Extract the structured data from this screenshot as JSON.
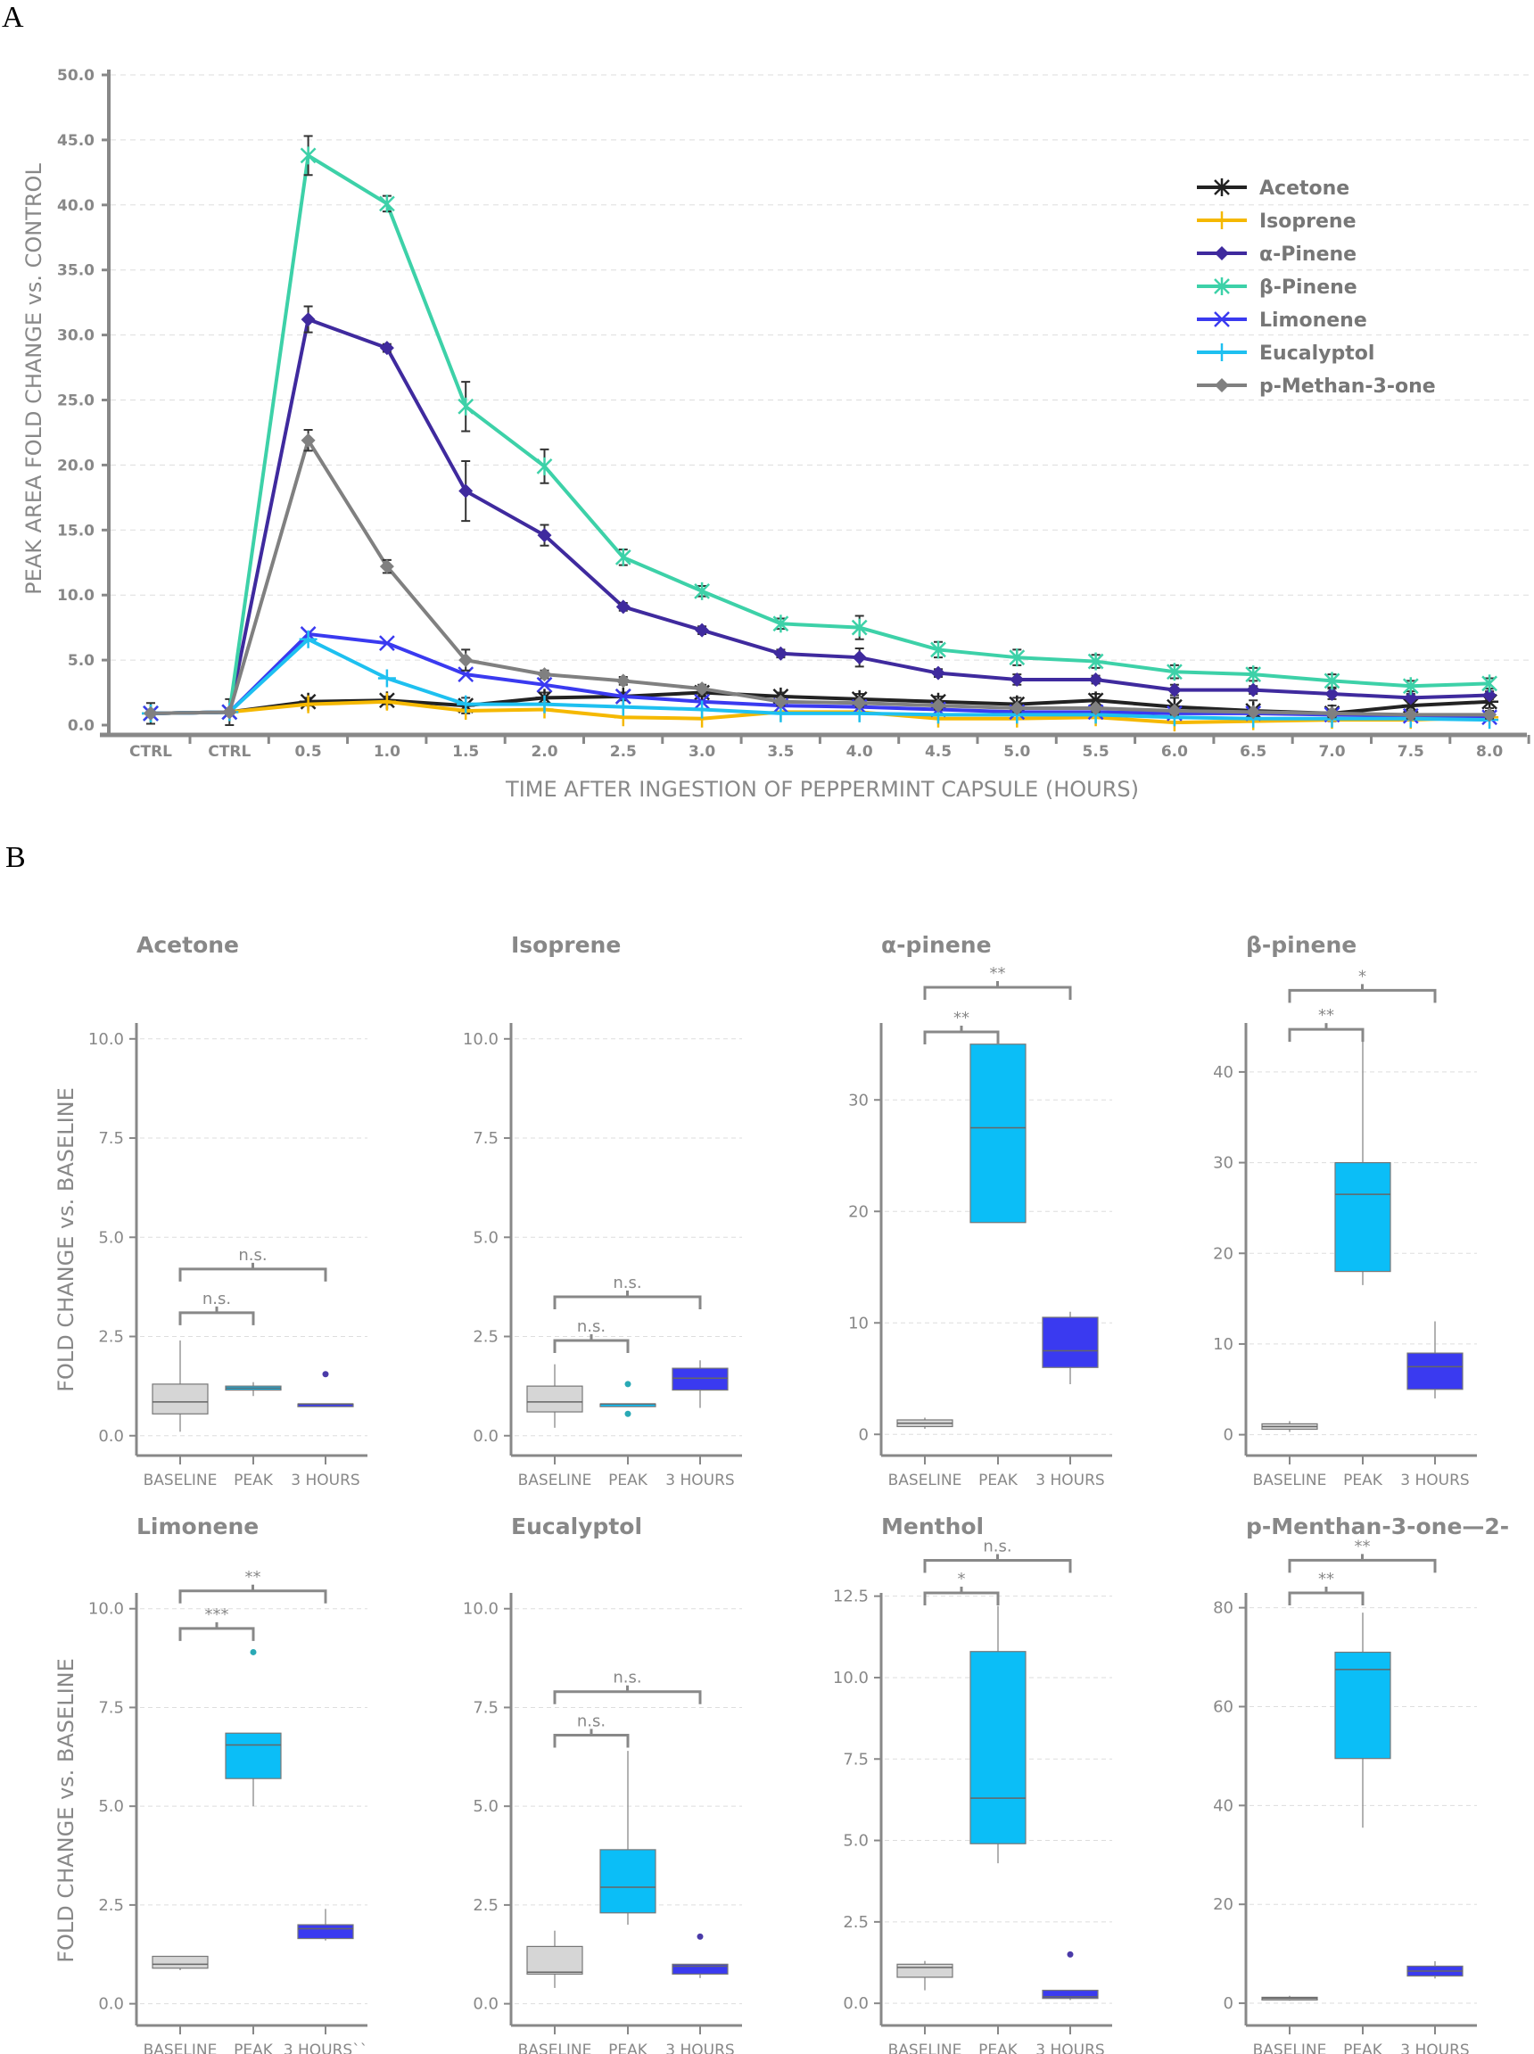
{
  "panel_labels": {
    "a": "A",
    "b": "B"
  },
  "chart_data": [
    {
      "type": "line",
      "panel": "A",
      "xlabel": "TIME AFTER INGESTION OF PEPPERMINT CAPSULE (HOURS)",
      "ylabel": "PEAK AREA FOLD CHANGE vs. CONTROL",
      "categories": [
        "CTRL",
        "CTRL",
        "0.5",
        "1.0",
        "1.5",
        "2.0",
        "2.5",
        "3.0",
        "3.5",
        "4.0",
        "4.5",
        "5.0",
        "5.5",
        "6.0",
        "6.5",
        "7.0",
        "7.5",
        "8.0"
      ],
      "ylim": [
        0,
        50
      ],
      "yticks": [
        "0.0",
        "5.0",
        "10.0",
        "15.0",
        "20.0",
        "25.0",
        "30.0",
        "35.0",
        "40.0",
        "45.0",
        "50.0"
      ],
      "grid": true,
      "legend_position": "top-right",
      "series": [
        {
          "name": "Acetone",
          "color": "#222222",
          "marker": "asterisk",
          "values": [
            0.9,
            1.0,
            1.8,
            1.9,
            1.5,
            2.1,
            2.2,
            2.5,
            2.2,
            2.0,
            1.8,
            1.6,
            1.9,
            1.4,
            1.1,
            0.9,
            1.5,
            1.8
          ],
          "error": [
            0.8,
            1.0,
            0.3,
            0.3,
            0.6,
            0.4,
            0.3,
            0.3,
            0.3,
            0.4,
            0.4,
            0.5,
            0.5,
            0.7,
            0.8,
            0.6,
            0.5,
            0.5
          ]
        },
        {
          "name": "Isoprene",
          "color": "#f5b800",
          "marker": "plus",
          "values": [
            0.9,
            1.0,
            1.6,
            1.8,
            1.1,
            1.2,
            0.6,
            0.5,
            1.0,
            1.0,
            0.5,
            0.5,
            0.6,
            0.2,
            0.3,
            0.4,
            0.4,
            0.6
          ]
        },
        {
          "name": "α-Pinene",
          "color": "#3f2a9e",
          "marker": "diamond",
          "values": [
            0.9,
            1.0,
            31.2,
            29.0,
            18.0,
            14.6,
            9.1,
            7.3,
            5.5,
            5.2,
            4.0,
            3.5,
            3.5,
            2.7,
            2.7,
            2.4,
            2.1,
            2.3
          ],
          "error": [
            0,
            0,
            1.0,
            0.3,
            2.3,
            0.8,
            0.3,
            0.3,
            0.3,
            0.7,
            0.3,
            0.4,
            0.3,
            0.4,
            0.3,
            0.4,
            0.3,
            0.3
          ]
        },
        {
          "name": "β-Pinene",
          "color": "#3dd1a8",
          "marker": "star",
          "values": [
            0.9,
            1.0,
            43.8,
            40.1,
            24.5,
            19.9,
            12.9,
            10.3,
            7.8,
            7.5,
            5.8,
            5.2,
            4.9,
            4.1,
            3.9,
            3.4,
            3.0,
            3.2
          ],
          "error": [
            0,
            0,
            1.5,
            0.6,
            1.9,
            1.3,
            0.6,
            0.4,
            0.4,
            0.9,
            0.6,
            0.6,
            0.5,
            0.5,
            0.5,
            0.5,
            0.4,
            0.4
          ]
        },
        {
          "name": "Limonene",
          "color": "#3a3af0",
          "marker": "x",
          "values": [
            0.9,
            1.0,
            7.0,
            6.3,
            3.9,
            3.1,
            2.2,
            1.8,
            1.5,
            1.4,
            1.2,
            1.0,
            1.0,
            0.9,
            0.9,
            0.8,
            0.7,
            0.6
          ]
        },
        {
          "name": "Eucalyptol",
          "color": "#1ec0f0",
          "marker": "plus",
          "values": [
            0.9,
            1.0,
            6.6,
            3.6,
            1.6,
            1.6,
            1.4,
            1.2,
            0.9,
            0.9,
            0.8,
            0.8,
            0.8,
            0.6,
            0.5,
            0.5,
            0.5,
            0.4
          ]
        },
        {
          "name": "p-Methan-3-one",
          "color": "#808080",
          "marker": "diamond",
          "values": [
            0.9,
            1.0,
            21.9,
            12.2,
            5.0,
            3.9,
            3.4,
            2.8,
            1.8,
            1.7,
            1.5,
            1.3,
            1.3,
            1.1,
            1.0,
            0.9,
            0.8,
            0.8
          ],
          "error": [
            0,
            0,
            0.8,
            0.5,
            0.8,
            0.3,
            0.3,
            0.3,
            0.3,
            0.3,
            0.3,
            0.3,
            0.3,
            0.3,
            0.3,
            0.3,
            0.3,
            0.3
          ]
        }
      ]
    },
    {
      "type": "box",
      "panel": "B",
      "ylabel": "FOLD CHANGE vs. BASELINE",
      "group_colors": {
        "BASELINE": "#d6d6d6",
        "PEAK": "#0bbef7",
        "3 HOURS": "#3a3af0"
      },
      "plots": [
        {
          "title": "Acetone",
          "categories": [
            "BASELINE",
            "PEAK",
            "3 HOURS"
          ],
          "ylim": [
            -0.5,
            10.4
          ],
          "yticks": [
            0,
            2.5,
            5,
            7.5,
            10
          ],
          "ytick_labels": [
            "0.0",
            "2.5",
            "5.0",
            "7.5",
            "10.0"
          ],
          "boxes": [
            [
              0.1,
              0.55,
              0.85,
              1.3,
              2.4
            ],
            [
              1.0,
              1.15,
              1.2,
              1.25,
              1.35
            ],
            [
              0.8,
              0.8,
              0.8,
              0.8,
              0.8
            ]
          ],
          "outliers": [
            [],
            [],
            [
              1.55
            ]
          ],
          "brackets": [
            {
              "from": 0,
              "to": 1,
              "y": 3.1,
              "label": "n.s."
            },
            {
              "from": 0,
              "to": 2,
              "y": 4.2,
              "label": "n.s."
            }
          ]
        },
        {
          "title": "Isoprene",
          "categories": [
            "BASELINE",
            "PEAK",
            "3 HOURS"
          ],
          "ylim": [
            -0.5,
            10.4
          ],
          "yticks": [
            0,
            2.5,
            5,
            7.5,
            10
          ],
          "ytick_labels": [
            "0.0",
            "2.5",
            "5.0",
            "7.5",
            "10.0"
          ],
          "boxes": [
            [
              0.2,
              0.6,
              0.85,
              1.25,
              1.8
            ],
            [
              0.8,
              0.8,
              0.8,
              0.8,
              0.8
            ],
            [
              0.7,
              1.15,
              1.45,
              1.7,
              1.9
            ]
          ],
          "outliers": [
            [],
            [
              1.3,
              0.55
            ],
            []
          ],
          "brackets": [
            {
              "from": 0,
              "to": 1,
              "y": 2.4,
              "label": "n.s."
            },
            {
              "from": 0,
              "to": 2,
              "y": 3.5,
              "label": "n.s."
            }
          ]
        },
        {
          "title": "α-pinene",
          "categories": [
            "BASELINE",
            "PEAK",
            "3 HOURS"
          ],
          "ylim": [
            -1.9,
            36.9
          ],
          "yticks": [
            0,
            10,
            20,
            30
          ],
          "ytick_labels": [
            "0",
            "10",
            "20",
            "30"
          ],
          "boxes": [
            [
              0.5,
              0.7,
              1.0,
              1.3,
              1.5
            ],
            [
              19,
              19,
              27.5,
              35,
              35.5
            ],
            [
              4.5,
              6,
              7.5,
              10.5,
              11
            ]
          ],
          "outliers": [
            [],
            [],
            []
          ],
          "brackets": [
            {
              "from": 0,
              "to": 1,
              "y": 36.1,
              "label": "**"
            },
            {
              "from": 0,
              "to": 2,
              "y": 40.1,
              "label": "**"
            }
          ]
        },
        {
          "title": "β-pinene",
          "categories": [
            "BASELINE",
            "PEAK",
            "3 HOURS"
          ],
          "ylim": [
            -2.3,
            45.4
          ],
          "yticks": [
            0,
            10,
            20,
            30,
            40
          ],
          "ytick_labels": [
            "0",
            "10",
            "20",
            "30",
            "40"
          ],
          "boxes": [
            [
              0.3,
              0.6,
              0.9,
              1.2,
              1.5
            ],
            [
              16.5,
              18,
              26.5,
              30,
              44
            ],
            [
              4,
              5,
              7.5,
              9,
              12.5
            ]
          ],
          "outliers": [
            [],
            [],
            []
          ],
          "brackets": [
            {
              "from": 0,
              "to": 1,
              "y": 44.7,
              "label": "**"
            },
            {
              "from": 0,
              "to": 2,
              "y": 49,
              "label": "*"
            }
          ]
        },
        {
          "title": "Limonene",
          "categories": [
            "BASELINE",
            "PEAK",
            "3 HOURS``"
          ],
          "ylim": [
            -0.55,
            10.4
          ],
          "yticks": [
            0,
            2.5,
            5,
            7.5,
            10
          ],
          "ytick_labels": [
            "0.0",
            "2.5",
            "5.0",
            "7.5",
            "10.0"
          ],
          "boxes": [
            [
              0.85,
              0.9,
              1.0,
              1.2,
              1.2
            ],
            [
              5.0,
              5.7,
              6.55,
              6.85,
              6.85
            ],
            [
              1.6,
              1.65,
              1.9,
              2.0,
              2.4
            ]
          ],
          "outliers": [
            [],
            [
              8.9
            ],
            []
          ],
          "brackets": [
            {
              "from": 0,
              "to": 1,
              "y": 9.5,
              "label": "***"
            },
            {
              "from": 0,
              "to": 2,
              "y": 10.45,
              "label": "**"
            }
          ]
        },
        {
          "title": "Eucalyptol",
          "categories": [
            "BASELINE",
            "PEAK",
            "3 HOURS"
          ],
          "ylim": [
            -0.55,
            10.4
          ],
          "yticks": [
            0,
            2.5,
            5,
            7.5,
            10
          ],
          "ytick_labels": [
            "0.0",
            "2.5",
            "5.0",
            "7.5",
            "10.0"
          ],
          "boxes": [
            [
              0.4,
              0.75,
              0.8,
              1.45,
              1.85
            ],
            [
              2.0,
              2.3,
              2.95,
              3.9,
              6.4
            ],
            [
              0.65,
              0.75,
              0.95,
              1.0,
              1.0
            ]
          ],
          "outliers": [
            [],
            [],
            [
              1.7
            ]
          ],
          "brackets": [
            {
              "from": 0,
              "to": 1,
              "y": 6.8,
              "label": "n.s."
            },
            {
              "from": 0,
              "to": 2,
              "y": 7.9,
              "label": "n.s."
            }
          ]
        },
        {
          "title": "Menthol",
          "categories": [
            "BASELINE",
            "PEAK",
            "3 HOURS"
          ],
          "ylim": [
            -0.68,
            12.6
          ],
          "yticks": [
            0,
            2.5,
            5,
            7.5,
            10,
            12.5
          ],
          "ytick_labels": [
            "0.0",
            "2.5",
            "5.0",
            "7.5",
            "10.0",
            "12.5"
          ],
          "boxes": [
            [
              0.4,
              0.8,
              1.1,
              1.2,
              1.3
            ],
            [
              4.3,
              4.9,
              6.3,
              10.8,
              12.2
            ],
            [
              0.1,
              0.15,
              0.2,
              0.4,
              0.4
            ]
          ],
          "outliers": [
            [],
            [],
            [
              1.5
            ]
          ],
          "brackets": [
            {
              "from": 0,
              "to": 1,
              "y": 12.6,
              "label": "*"
            },
            {
              "from": 0,
              "to": 2,
              "y": 13.6,
              "label": "n.s."
            }
          ]
        },
        {
          "title": "p-Menthan-3-one—2-",
          "categories": [
            "BASELINE",
            "PEAK",
            "3 HOURS"
          ],
          "ylim": [
            -4.5,
            83
          ],
          "yticks": [
            0,
            20,
            40,
            60,
            80
          ],
          "ytick_labels": [
            "0",
            "20",
            "40",
            "60",
            "80"
          ],
          "boxes": [
            [
              0.5,
              0.8,
              1.0,
              1.2,
              1.5
            ],
            [
              35.5,
              49.5,
              67.5,
              71,
              79
            ],
            [
              5,
              5.5,
              6.5,
              7.5,
              8.5
            ]
          ],
          "outliers": [
            [],
            [],
            []
          ],
          "brackets": [
            {
              "from": 0,
              "to": 1,
              "y": 83,
              "label": "**"
            },
            {
              "from": 0,
              "to": 2,
              "y": 89.6,
              "label": "**"
            }
          ]
        }
      ]
    }
  ]
}
